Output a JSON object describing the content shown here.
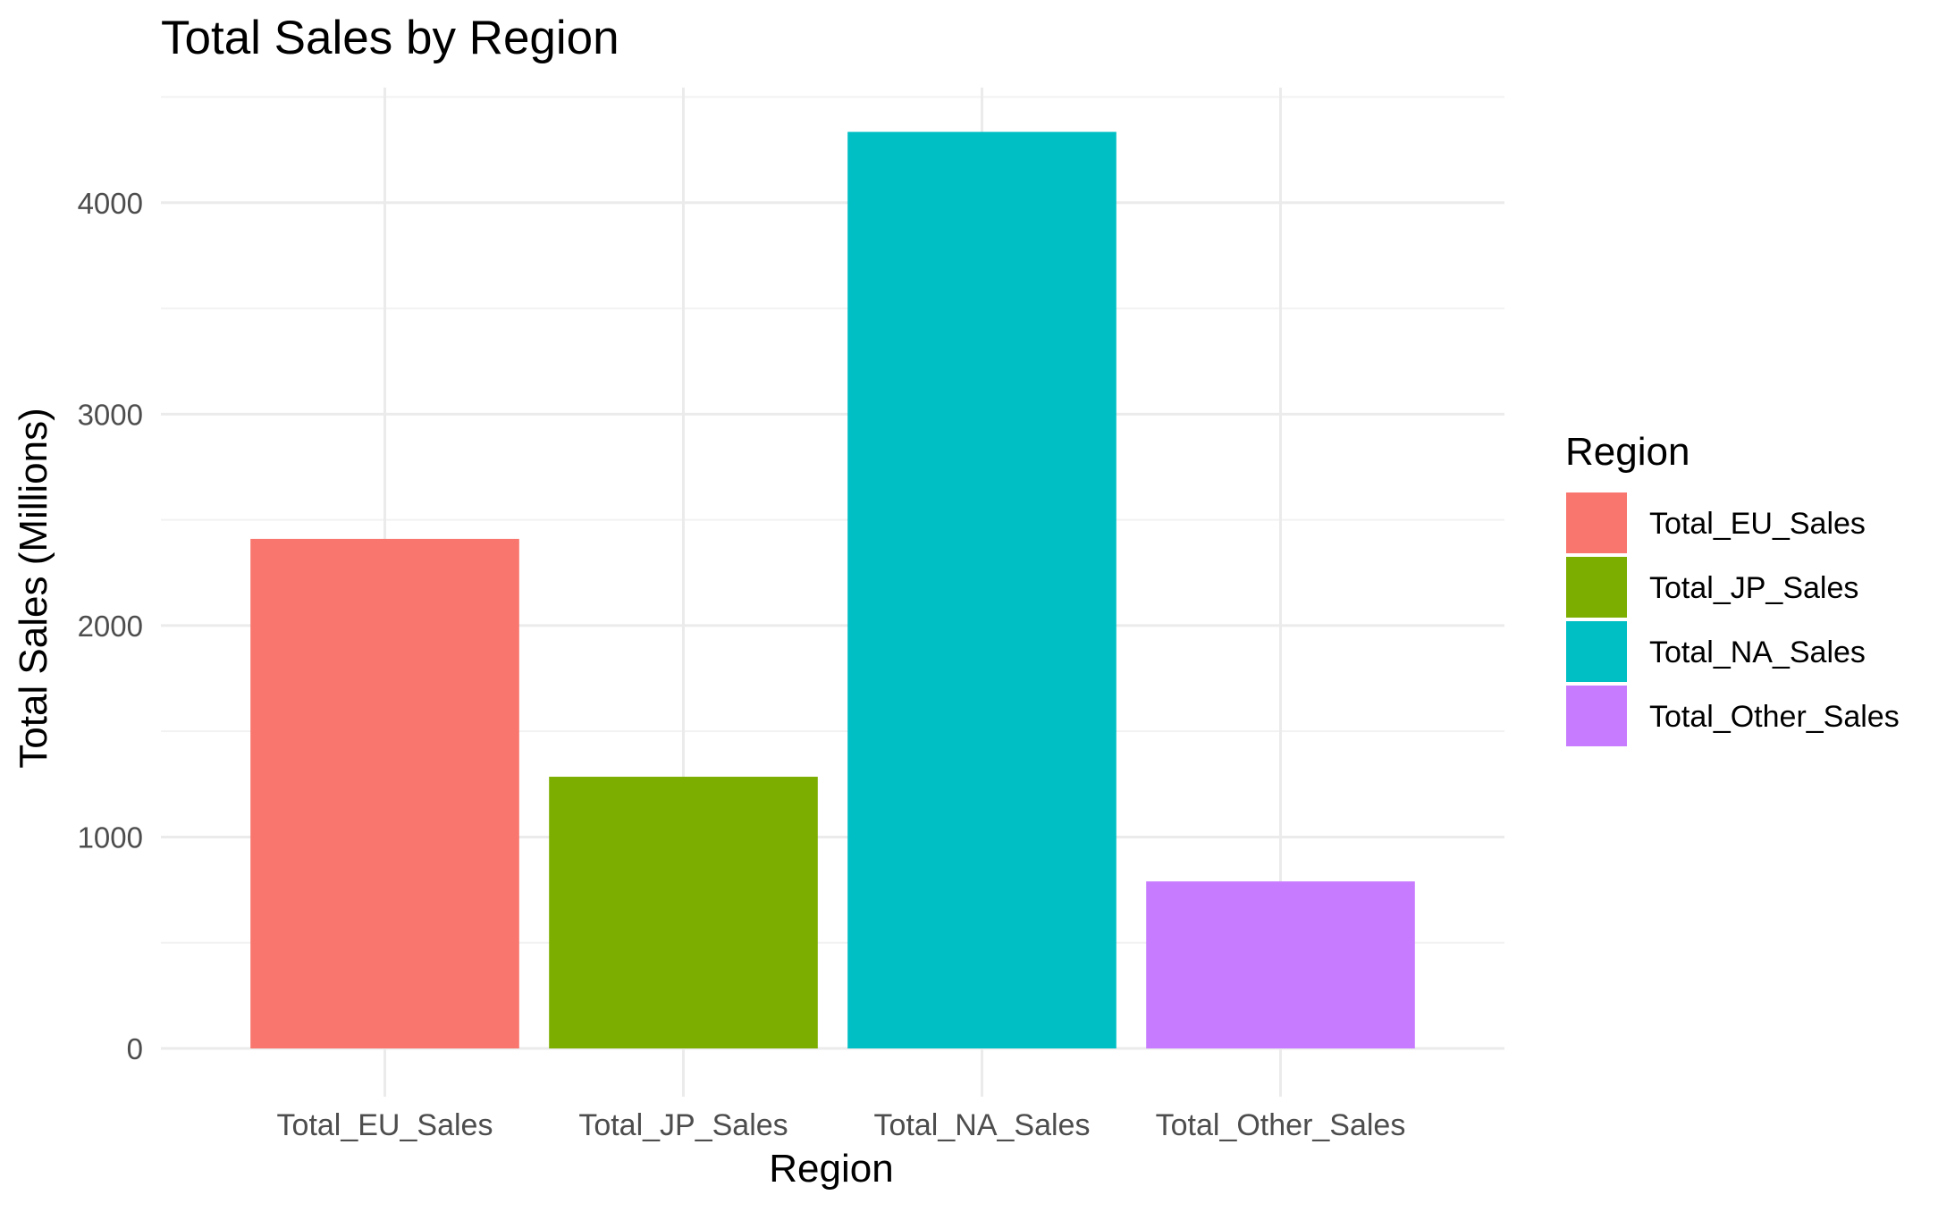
{
  "chart_data": {
    "type": "bar",
    "title": "Total Sales by Region",
    "xlabel": "Region",
    "ylabel": "Total Sales (Millions)",
    "categories": [
      "Total_EU_Sales",
      "Total_JP_Sales",
      "Total_NA_Sales",
      "Total_Other_Sales"
    ],
    "values": [
      2410,
      1285,
      4335,
      790
    ],
    "colors": [
      "#F8766D",
      "#7CAE00",
      "#00BFC4",
      "#C77CFF"
    ],
    "ylim": [
      0,
      4500
    ],
    "yticks": [
      0,
      1000,
      2000,
      3000,
      4000
    ],
    "ytick_labels": [
      "0",
      "1000",
      "2000",
      "3000",
      "4000"
    ],
    "grid": true,
    "legend": {
      "title": "Region",
      "position": "right",
      "items": [
        "Total_EU_Sales",
        "Total_JP_Sales",
        "Total_NA_Sales",
        "Total_Other_Sales"
      ]
    },
    "style": {
      "background": "#ffffff",
      "grid_major_color": "#EBEBEB",
      "grid_minor_color": "#F2F2F2",
      "tick_label_color": "#4D4D4D",
      "text_color": "#000000"
    }
  }
}
